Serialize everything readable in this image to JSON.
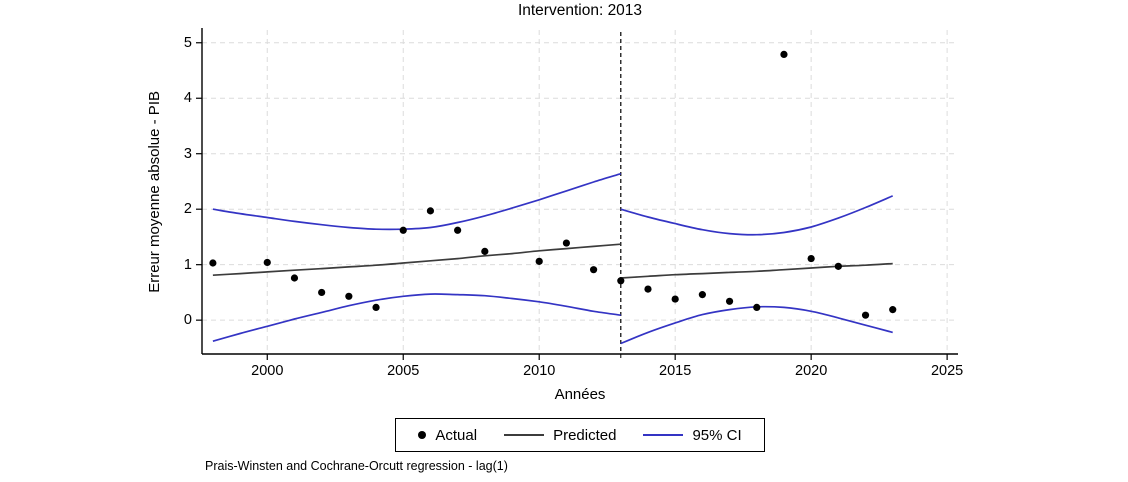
{
  "page": {
    "background": "#ffffff"
  },
  "chart_data": {
    "type": "line",
    "title": "Intervention: 2013",
    "xlabel": "Années",
    "ylabel": "Erreur moyenne absolue - PIB",
    "footnote": "Prais-Winsten and Cochrane-Orcutt regression - lag(1)",
    "xlim": [
      1997.6,
      2025.4
    ],
    "ylim": [
      -0.61,
      5.23
    ],
    "x_ticks": [
      2000,
      2005,
      2010,
      2015,
      2020,
      2025
    ],
    "y_ticks": [
      0,
      1,
      2,
      3,
      4,
      5
    ],
    "grid": true,
    "legend_position": "bottom-center",
    "intervention": {
      "x": 2013,
      "style": "dashed-vertical-line"
    },
    "colors": {
      "actual": "#000000",
      "predicted": "#3c3c3c",
      "ci": "#3434c4",
      "grid": "#dcdcdc",
      "axis": "#000000"
    },
    "legend": [
      {
        "label": "Actual",
        "marker": "dot",
        "color": "#000000"
      },
      {
        "label": "Predicted",
        "marker": "line",
        "color": "#3c3c3c"
      },
      {
        "label": "95% CI",
        "marker": "line",
        "color": "#3434c4"
      }
    ],
    "actual": {
      "name": "Actual",
      "points": [
        [
          1998,
          1.03
        ],
        [
          2000,
          1.04
        ],
        [
          2001,
          0.76
        ],
        [
          2002,
          0.5
        ],
        [
          2003,
          0.43
        ],
        [
          2004,
          0.23
        ],
        [
          2005,
          1.62
        ],
        [
          2006,
          1.97
        ],
        [
          2007,
          1.62
        ],
        [
          2008,
          1.24
        ],
        [
          2010,
          1.06
        ],
        [
          2011,
          1.39
        ],
        [
          2012,
          0.91
        ],
        [
          2013,
          0.71
        ],
        [
          2014,
          0.56
        ],
        [
          2015,
          0.38
        ],
        [
          2016,
          0.46
        ],
        [
          2017,
          0.34
        ],
        [
          2018,
          0.23
        ],
        [
          2019,
          4.79
        ],
        [
          2020,
          1.11
        ],
        [
          2021,
          0.97
        ],
        [
          2022,
          0.09
        ],
        [
          2023,
          0.19
        ]
      ]
    },
    "pre_intervention": {
      "x": [
        1998,
        1999,
        2000,
        2001,
        2002,
        2003,
        2004,
        2005,
        2006,
        2007,
        2008,
        2009,
        2010,
        2011,
        2012,
        2013
      ],
      "predicted": [
        0.81,
        0.84,
        0.87,
        0.9,
        0.93,
        0.96,
        0.99,
        1.03,
        1.07,
        1.11,
        1.16,
        1.2,
        1.25,
        1.29,
        1.33,
        1.37
      ],
      "ci_upper": [
        2.0,
        1.92,
        1.85,
        1.78,
        1.72,
        1.67,
        1.64,
        1.64,
        1.67,
        1.76,
        1.88,
        2.02,
        2.17,
        2.33,
        2.49,
        2.64
      ],
      "ci_lower": [
        -0.38,
        -0.24,
        -0.11,
        0.02,
        0.14,
        0.26,
        0.36,
        0.43,
        0.47,
        0.46,
        0.44,
        0.39,
        0.33,
        0.25,
        0.16,
        0.09
      ]
    },
    "post_intervention": {
      "x": [
        2013,
        2014,
        2015,
        2016,
        2017,
        2018,
        2019,
        2020,
        2021,
        2022,
        2023
      ],
      "predicted": [
        0.76,
        0.79,
        0.82,
        0.84,
        0.86,
        0.88,
        0.91,
        0.94,
        0.97,
        0.99,
        1.02
      ],
      "ci_upper": [
        2.0,
        1.86,
        1.74,
        1.63,
        1.56,
        1.54,
        1.58,
        1.68,
        1.84,
        2.03,
        2.24
      ],
      "ci_lower": [
        -0.42,
        -0.22,
        -0.05,
        0.1,
        0.19,
        0.24,
        0.23,
        0.16,
        0.04,
        -0.09,
        -0.22
      ]
    }
  }
}
